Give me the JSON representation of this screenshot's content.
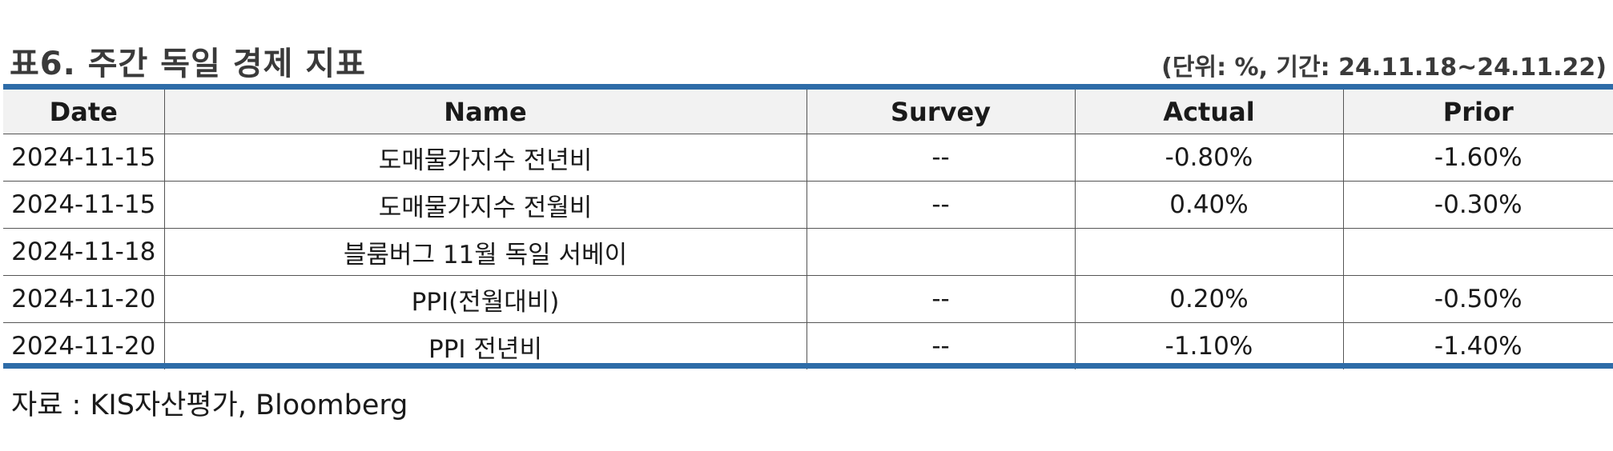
{
  "header": {
    "title": "표6. 주간 독일 경제 지표",
    "meta": "(단위: %, 기간: 24.11.18~24.11.22)"
  },
  "colors": {
    "accent_rule": "#2e6ca8",
    "header_bg": "#f2f2f2"
  },
  "table": {
    "columns": [
      "Date",
      "Name",
      "Survey",
      "Actual",
      "Prior"
    ],
    "rows": [
      [
        "2024-11-15",
        "도매물가지수 전년비",
        "--",
        "-0.80%",
        "-1.60%"
      ],
      [
        "2024-11-15",
        "도매물가지수 전월비",
        "--",
        "0.40%",
        "-0.30%"
      ],
      [
        "2024-11-18",
        "블룸버그 11월 독일 서베이",
        "",
        "",
        ""
      ],
      [
        "2024-11-20",
        "PPI(전월대비)",
        "--",
        "0.20%",
        "-0.50%"
      ],
      [
        "2024-11-20",
        "PPI 전년비",
        "--",
        "-1.10%",
        "-1.40%"
      ]
    ]
  },
  "footer": {
    "source": "자료 : KIS자산평가, Bloomberg"
  }
}
